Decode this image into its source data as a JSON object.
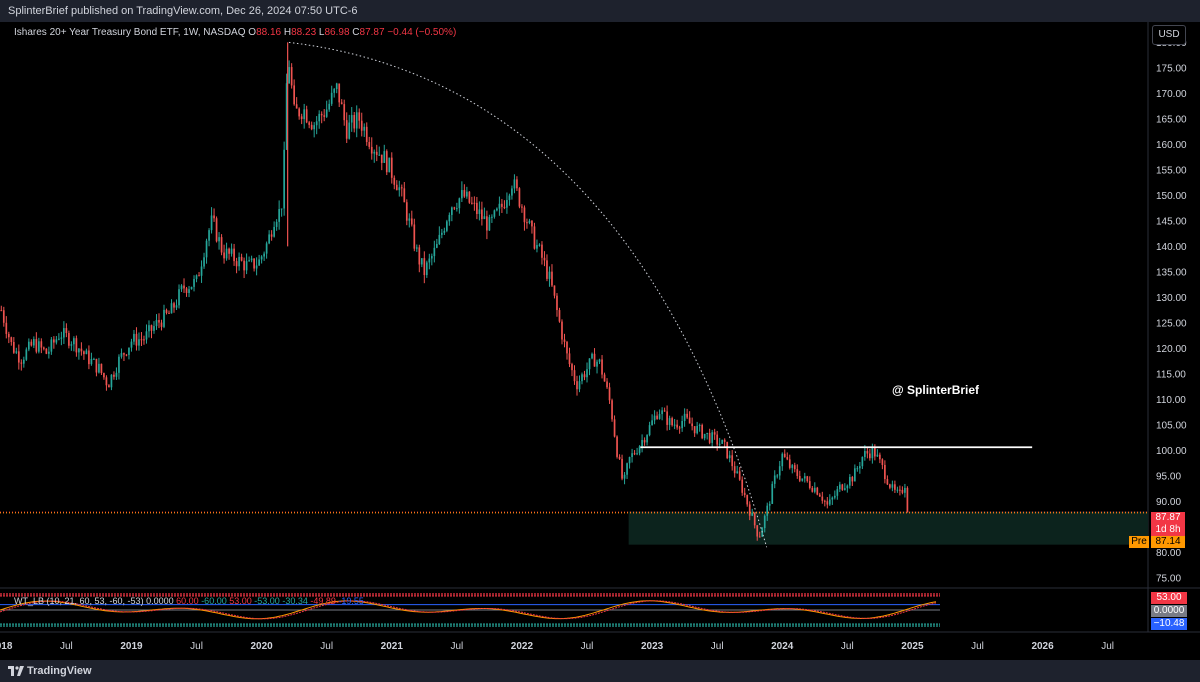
{
  "header": {
    "published": "SplinterBrief published on TradingView.com, Dec 26, 2024 07:50 UTC-6"
  },
  "legend": {
    "symbol": "Ishares 20+ Year Treasury Bond ETF, 1W, NASDAQ",
    "o_label": "O",
    "o_value": "88.16",
    "h_label": "H",
    "h_value": "88.23",
    "l_label": "L",
    "l_value": "86.98",
    "c_label": "C",
    "c_value": "87.87",
    "change": "−0.44 (−0.50%)"
  },
  "currency": "USD",
  "watermark": "@ SplinterBrief",
  "price_tags": {
    "last": "87.87",
    "countdown": "1d 8h",
    "pre_label": "Pre",
    "pre_value": "87.14"
  },
  "indicator": {
    "name": "WT_LB (10, 21, 60, 53, -60, -53)",
    "values": [
      "0.0000",
      "60.00",
      "-60.00",
      "53.00",
      "-53.00",
      "-30.34",
      "-49.89",
      "-19.55"
    ],
    "tags": {
      "upper": "53.00",
      "zero": "0.0000",
      "lower": "−10.48"
    }
  },
  "footer": {
    "brand": "TradingView"
  },
  "colors": {
    "up": "#26a69a",
    "down": "#ef5350",
    "background": "#000000",
    "price_tag": "#f23645",
    "pre_tag": "#ff9800",
    "wt_lower_tag": "#2962ff"
  },
  "chart_data": {
    "type": "candlestick",
    "title": "Ishares 20+ Year Treasury Bond ETF, 1W, NASDAQ",
    "interval": "1W",
    "ylim": [
      73.0,
      184.0
    ],
    "y_ticks": [
      75,
      80,
      85,
      90,
      95,
      100,
      105,
      110,
      115,
      120,
      125,
      130,
      135,
      140,
      145,
      150,
      155,
      160,
      165,
      170,
      175,
      180
    ],
    "x_ticks": [
      "2018",
      "Jul",
      "2019",
      "Jul",
      "2020",
      "Jul",
      "2021",
      "Jul",
      "2022",
      "Jul",
      "2023",
      "Jul",
      "2024",
      "Jul",
      "2025",
      "Jul",
      "2026",
      "Jul"
    ],
    "x_tick_times": [
      2018.0,
      2018.5,
      2019.0,
      2019.5,
      2020.0,
      2020.5,
      2021.0,
      2021.5,
      2022.0,
      2022.5,
      2023.0,
      2023.5,
      2024.0,
      2024.5,
      2025.0,
      2025.5,
      2026.0,
      2026.5
    ],
    "xlim": [
      2017.99,
      2026.81
    ],
    "grid": false,
    "price_path": [
      [
        2018.0,
        127.5
      ],
      [
        2018.08,
        120.5
      ],
      [
        2018.15,
        118.0
      ],
      [
        2018.25,
        121.0
      ],
      [
        2018.35,
        119.0
      ],
      [
        2018.45,
        123.0
      ],
      [
        2018.55,
        121.5
      ],
      [
        2018.65,
        118.5
      ],
      [
        2018.75,
        116.0
      ],
      [
        2018.82,
        113.0
      ],
      [
        2018.9,
        117.5
      ],
      [
        2019.0,
        121.5
      ],
      [
        2019.1,
        122.0
      ],
      [
        2019.2,
        125.0
      ],
      [
        2019.3,
        127.0
      ],
      [
        2019.4,
        132.0
      ],
      [
        2019.5,
        133.0
      ],
      [
        2019.58,
        142.0
      ],
      [
        2019.62,
        145.0
      ],
      [
        2019.7,
        139.0
      ],
      [
        2019.8,
        137.5
      ],
      [
        2019.9,
        136.0
      ],
      [
        2019.98,
        137.0
      ],
      [
        2020.05,
        141.0
      ],
      [
        2020.1,
        146.0
      ],
      [
        2020.15,
        147.0
      ],
      [
        2020.18,
        160.0
      ],
      [
        2020.2,
        179.0
      ],
      [
        2020.25,
        166.0
      ],
      [
        2020.32,
        167.0
      ],
      [
        2020.4,
        164.0
      ],
      [
        2020.5,
        167.0
      ],
      [
        2020.58,
        171.0
      ],
      [
        2020.65,
        163.0
      ],
      [
        2020.75,
        165.0
      ],
      [
        2020.85,
        160.0
      ],
      [
        2020.95,
        157.0
      ],
      [
        2021.05,
        152.0
      ],
      [
        2021.12,
        146.0
      ],
      [
        2021.2,
        138.0
      ],
      [
        2021.25,
        135.0
      ],
      [
        2021.35,
        140.0
      ],
      [
        2021.45,
        148.0
      ],
      [
        2021.55,
        150.0
      ],
      [
        2021.65,
        147.0
      ],
      [
        2021.75,
        144.0
      ],
      [
        2021.85,
        148.0
      ],
      [
        2021.92,
        153.0
      ],
      [
        2022.0,
        148.0
      ],
      [
        2022.08,
        142.0
      ],
      [
        2022.15,
        138.0
      ],
      [
        2022.22,
        133.0
      ],
      [
        2022.28,
        126.0
      ],
      [
        2022.35,
        118.0
      ],
      [
        2022.42,
        113.0
      ],
      [
        2022.5,
        116.0
      ],
      [
        2022.55,
        118.0
      ],
      [
        2022.6,
        117.0
      ],
      [
        2022.68,
        109.0
      ],
      [
        2022.73,
        100.0
      ],
      [
        2022.78,
        93.0
      ],
      [
        2022.82,
        98.0
      ],
      [
        2022.9,
        101.0
      ],
      [
        2022.97,
        104.0
      ],
      [
        2023.05,
        108.0
      ],
      [
        2023.15,
        105.0
      ],
      [
        2023.25,
        106.0
      ],
      [
        2023.35,
        104.0
      ],
      [
        2023.45,
        102.5
      ],
      [
        2023.55,
        101.0
      ],
      [
        2023.62,
        97.0
      ],
      [
        2023.7,
        92.0
      ],
      [
        2023.78,
        86.0
      ],
      [
        2023.82,
        83.0
      ],
      [
        2023.88,
        88.0
      ],
      [
        2023.95,
        95.0
      ],
      [
        2024.0,
        99.0
      ],
      [
        2024.08,
        96.0
      ],
      [
        2024.18,
        94.0
      ],
      [
        2024.28,
        92.0
      ],
      [
        2024.35,
        89.0
      ],
      [
        2024.45,
        93.0
      ],
      [
        2024.55,
        95.0
      ],
      [
        2024.62,
        99.0
      ],
      [
        2024.7,
        100.0
      ],
      [
        2024.78,
        96.0
      ],
      [
        2024.85,
        92.0
      ],
      [
        2024.9,
        91.0
      ],
      [
        2024.95,
        94.0
      ],
      [
        2024.98,
        87.87
      ]
    ],
    "annotations": {
      "arc_from": [
        2020.21,
        180.0
      ],
      "arc_to": [
        2023.88,
        81.0
      ],
      "horizontal_line": {
        "value": 100.6,
        "x_from": 2022.91,
        "x_to": 2025.92
      },
      "zone": {
        "low": 81.5,
        "high": 88.0,
        "x_from": 2022.82
      },
      "last_price": 87.87,
      "pre_price": 87.14
    },
    "indicator": {
      "name": "WT_LB",
      "levels": [
        60,
        53,
        0,
        -53,
        -60
      ],
      "ylim": [
        -75,
        75
      ]
    }
  }
}
